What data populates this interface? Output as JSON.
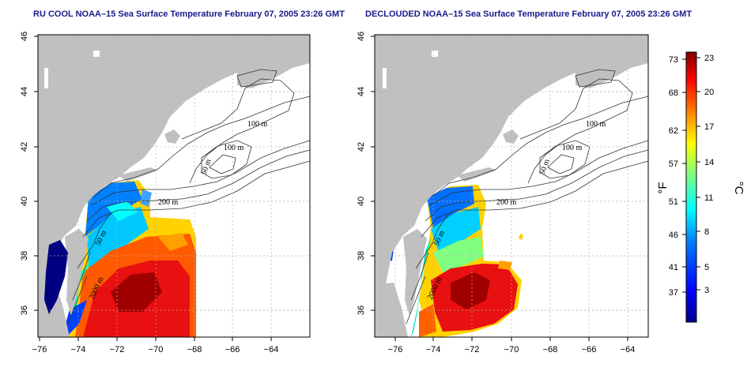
{
  "panels": [
    {
      "id": "left",
      "title": "RU COOL NOAA–15 Sea Surface Temperature February 07, 2005 23:26 GMT"
    },
    {
      "id": "right",
      "title": "DECLOUDED NOAA–15 Sea Surface Temperature February 07, 2005 23:26 GMT"
    }
  ],
  "axes": {
    "x_ticks": [
      "−76",
      "−74",
      "−72",
      "−70",
      "−68",
      "−66",
      "−64"
    ],
    "y_ticks": [
      "46",
      "44",
      "42",
      "40",
      "38",
      "36"
    ]
  },
  "contour_labels": {
    "c100a": "100 m",
    "c100b": "100 m",
    "c50": "50 m",
    "c200": "200 m",
    "c50b": "50 m",
    "c2000": "2000 m"
  },
  "colorbar": {
    "fahrenheit_unit": "°F",
    "celsius_unit": "°C",
    "fahrenheit_ticks": [
      "73",
      "68",
      "62",
      "57",
      "51",
      "46",
      "41",
      "37"
    ],
    "celsius_ticks": [
      "23",
      "20",
      "17",
      "14",
      "11",
      "8",
      "5",
      "3"
    ],
    "colors": [
      "#00008f",
      "#0000ff",
      "#0080ff",
      "#00ffff",
      "#80ff80",
      "#ffff00",
      "#ff8000",
      "#ff0000",
      "#800000"
    ]
  },
  "colors": {
    "land": "#c0c0c0",
    "grid": "#b0b0b0",
    "title": "#1a1a8c"
  }
}
